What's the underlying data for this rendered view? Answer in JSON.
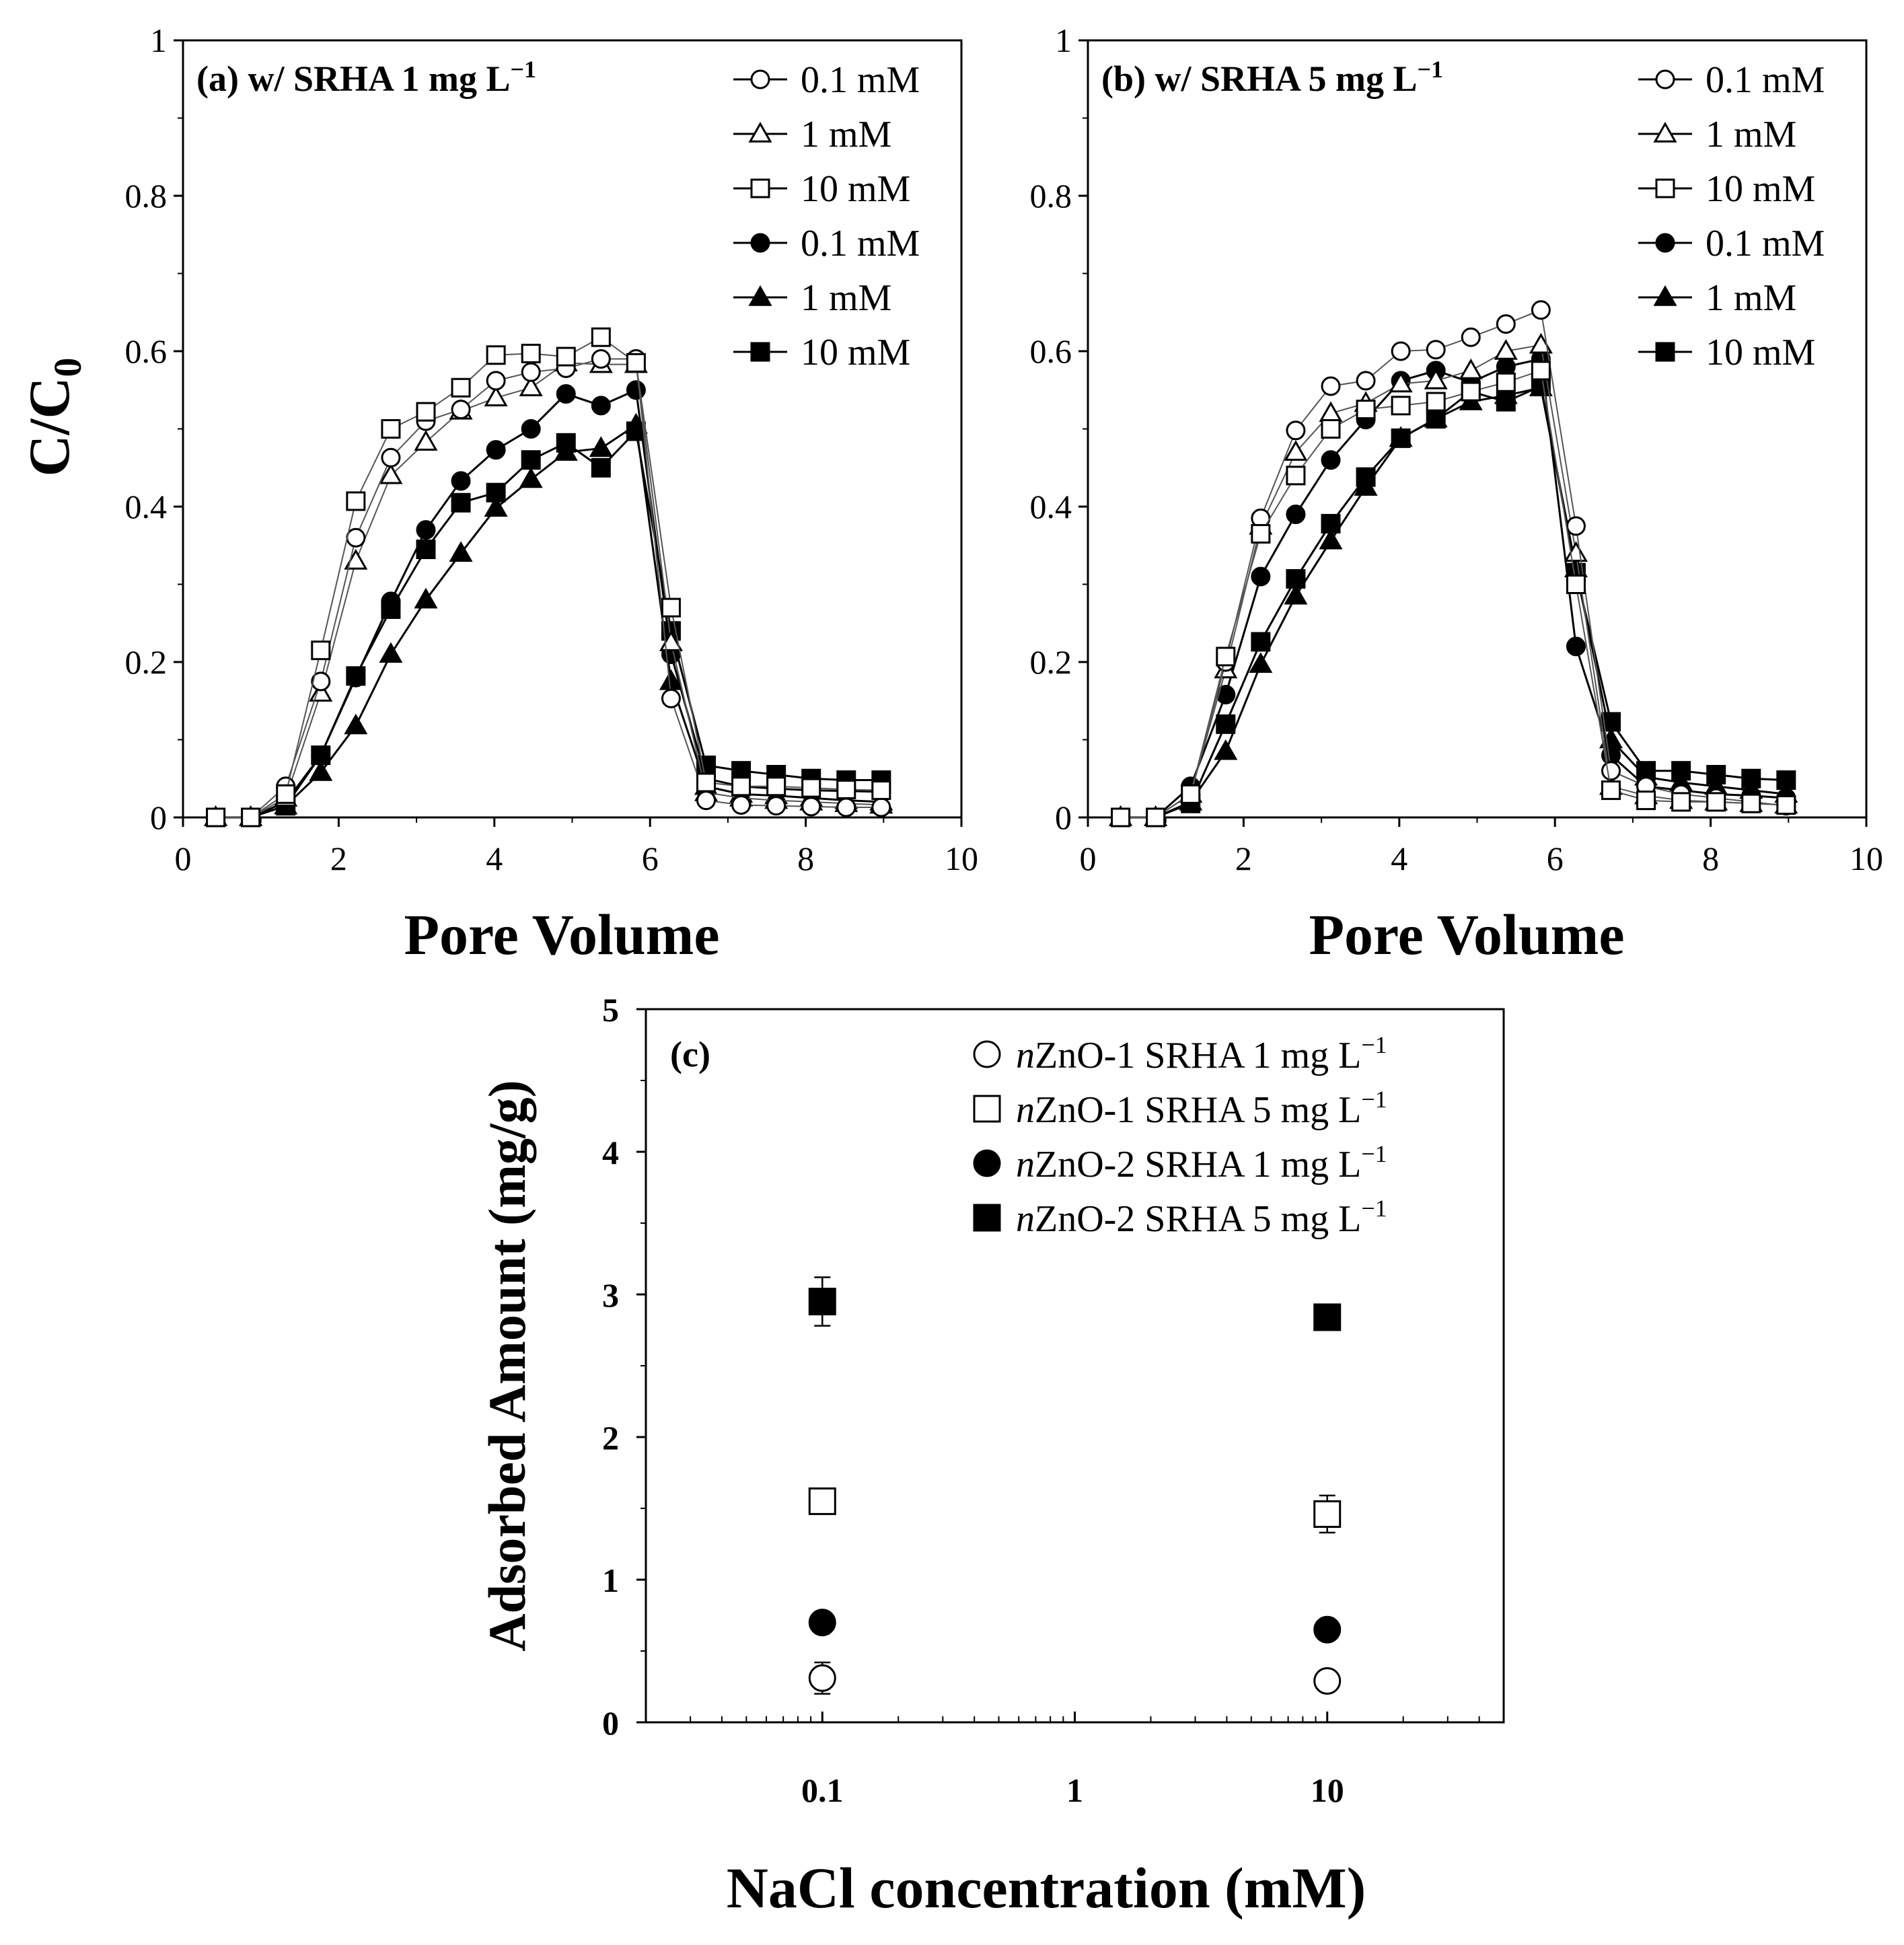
{
  "chart_data": [
    {
      "type": "line",
      "panel_label": "(a) w/ SRHA 1 mg L",
      "panel_label_sup": "−1",
      "xlabel": "Pore Volume",
      "ylabel": "C/C",
      "ylabel_sub": "0",
      "xlim": [
        0,
        10
      ],
      "ylim": [
        0,
        1
      ],
      "xticks": [
        "0",
        "2",
        "4",
        "6",
        "8",
        "10"
      ],
      "yticks": [
        "0",
        "0.2",
        "0.4",
        "0.6",
        "0.8",
        "1"
      ],
      "legend_position": "top-right",
      "x": [
        0.42,
        0.87,
        1.32,
        1.77,
        2.22,
        2.67,
        3.12,
        3.57,
        4.02,
        4.47,
        4.92,
        5.37,
        5.82,
        6.27,
        6.72,
        7.17,
        7.62,
        8.07,
        8.52,
        8.97
      ],
      "series": [
        {
          "name": "0.1 mM",
          "marker": "circle",
          "filled": false,
          "values": [
            0,
            0,
            0.04,
            0.175,
            0.36,
            0.463,
            0.51,
            0.525,
            0.562,
            0.573,
            0.578,
            0.59,
            0.59,
            0.153,
            0.022,
            0.016,
            0.015,
            0.014,
            0.013,
            0.013
          ]
        },
        {
          "name": "1 mM",
          "marker": "triangle",
          "filled": false,
          "values": [
            0,
            0,
            0.025,
            0.16,
            0.33,
            0.44,
            0.483,
            0.523,
            0.54,
            0.553,
            0.585,
            0.583,
            0.583,
            0.225,
            0.032,
            0.025,
            0.022,
            0.02,
            0.018,
            0.016
          ]
        },
        {
          "name": "10 mM",
          "marker": "square",
          "filled": false,
          "values": [
            0,
            0,
            0.03,
            0.215,
            0.407,
            0.5,
            0.522,
            0.553,
            0.595,
            0.597,
            0.593,
            0.618,
            0.585,
            0.27,
            0.045,
            0.04,
            0.04,
            0.038,
            0.036,
            0.035
          ]
        },
        {
          "name": "0.1 mM",
          "marker": "circle",
          "filled": true,
          "values": [
            0,
            0,
            0.02,
            0.08,
            0.18,
            0.278,
            0.37,
            0.433,
            0.473,
            0.5,
            0.545,
            0.53,
            0.55,
            0.21,
            0.05,
            0.04,
            0.037,
            0.035,
            0.034,
            0.033
          ]
        },
        {
          "name": "1 mM",
          "marker": "triangle",
          "filled": true,
          "values": [
            0,
            0,
            0.015,
            0.058,
            0.118,
            0.21,
            0.28,
            0.34,
            0.398,
            0.435,
            0.47,
            0.475,
            0.505,
            0.175,
            0.04,
            0.03,
            0.028,
            0.025,
            0.022,
            0.02
          ]
        },
        {
          "name": "10 mM",
          "marker": "square",
          "filled": true,
          "values": [
            0,
            0,
            0.015,
            0.08,
            0.182,
            0.268,
            0.345,
            0.405,
            0.418,
            0.46,
            0.482,
            0.45,
            0.497,
            0.24,
            0.067,
            0.06,
            0.055,
            0.05,
            0.048,
            0.048
          ]
        }
      ]
    },
    {
      "type": "line",
      "panel_label": "(b) w/ SRHA 5 mg L",
      "panel_label_sup": "−1",
      "xlabel": "Pore Volume",
      "xlim": [
        0,
        10
      ],
      "ylim": [
        0,
        1
      ],
      "xticks": [
        "0",
        "2",
        "4",
        "6",
        "8",
        "10"
      ],
      "yticks": [
        "0",
        "0.2",
        "0.4",
        "0.6",
        "0.8",
        "1"
      ],
      "legend_position": "top-right",
      "x": [
        0.42,
        0.87,
        1.32,
        1.77,
        2.22,
        2.67,
        3.12,
        3.57,
        4.02,
        4.47,
        4.92,
        5.37,
        5.82,
        6.27,
        6.72,
        7.17,
        7.62,
        8.07,
        8.52,
        8.97
      ],
      "series": [
        {
          "name": "0.1 mM",
          "marker": "circle",
          "filled": false,
          "values": [
            0,
            0,
            0.03,
            0.2,
            0.385,
            0.498,
            0.555,
            0.562,
            0.6,
            0.602,
            0.618,
            0.635,
            0.653,
            0.375,
            0.06,
            0.04,
            0.03,
            0.025,
            0.02,
            0.015
          ]
        },
        {
          "name": "1 mM",
          "marker": "triangle",
          "filled": false,
          "values": [
            0,
            0,
            0.03,
            0.19,
            0.375,
            0.47,
            0.52,
            0.533,
            0.558,
            0.562,
            0.575,
            0.6,
            0.608,
            0.34,
            0.04,
            0.028,
            0.022,
            0.02,
            0.018,
            0.016
          ]
        },
        {
          "name": "10 mM",
          "marker": "square",
          "filled": false,
          "values": [
            0,
            0,
            0.03,
            0.207,
            0.365,
            0.44,
            0.5,
            0.525,
            0.53,
            0.535,
            0.548,
            0.56,
            0.575,
            0.3,
            0.035,
            0.022,
            0.02,
            0.02,
            0.018,
            0.016
          ]
        },
        {
          "name": "0.1 mM",
          "marker": "circle",
          "filled": true,
          "values": [
            0,
            0,
            0.04,
            0.158,
            0.31,
            0.39,
            0.46,
            0.512,
            0.562,
            0.575,
            0.56,
            0.58,
            0.59,
            0.22,
            0.08,
            0.04,
            0.035,
            0.03,
            0.028,
            0.025
          ]
        },
        {
          "name": "1 mM",
          "marker": "triangle",
          "filled": true,
          "values": [
            0,
            0,
            0.02,
            0.085,
            0.197,
            0.285,
            0.356,
            0.425,
            0.488,
            0.513,
            0.535,
            0.543,
            0.553,
            0.32,
            0.1,
            0.052,
            0.045,
            0.04,
            0.035,
            0.03
          ]
        },
        {
          "name": "10 mM",
          "marker": "square",
          "filled": true,
          "values": [
            0,
            0,
            0.018,
            0.12,
            0.226,
            0.307,
            0.378,
            0.438,
            0.488,
            0.513,
            0.548,
            0.535,
            0.555,
            0.315,
            0.123,
            0.06,
            0.06,
            0.055,
            0.05,
            0.048
          ]
        }
      ]
    },
    {
      "type": "scatter",
      "panel_label": "(c)",
      "xlabel": "NaCl concentration (mM)",
      "ylabel": "Adsorbed Amount (mg/g)",
      "xscale": "log",
      "xlim": [
        0.02,
        50
      ],
      "ylim": [
        0,
        5
      ],
      "xticks": [
        "0.1",
        "1",
        "10"
      ],
      "yticks": [
        "0",
        "1",
        "2",
        "3",
        "4",
        "5"
      ],
      "legend_position": "top-right",
      "x": [
        0.1,
        10
      ],
      "series": [
        {
          "name_italic": "n",
          "name": "ZnO-1 SRHA 1 mg L",
          "name_sup": "−1",
          "marker": "circle",
          "filled": false,
          "values": [
            0.31,
            0.29
          ],
          "error": [
            0.11,
            0.07
          ]
        },
        {
          "name_italic": "n",
          "name": "ZnO-1 SRHA 5 mg L",
          "name_sup": "−1",
          "marker": "square",
          "filled": false,
          "values": [
            1.55,
            1.46
          ],
          "error": [
            0.06,
            0.13
          ]
        },
        {
          "name_italic": "n",
          "name": "ZnO-2 SRHA 1 mg L",
          "name_sup": "−1",
          "marker": "circle",
          "filled": true,
          "values": [
            0.7,
            0.65
          ],
          "error": [
            0.03,
            0.03
          ]
        },
        {
          "name_italic": "n",
          "name": "ZnO-2 SRHA 5 mg L",
          "name_sup": "−1",
          "marker": "square",
          "filled": true,
          "values": [
            2.95,
            2.84
          ],
          "error": [
            0.17,
            0.03
          ]
        }
      ]
    }
  ]
}
